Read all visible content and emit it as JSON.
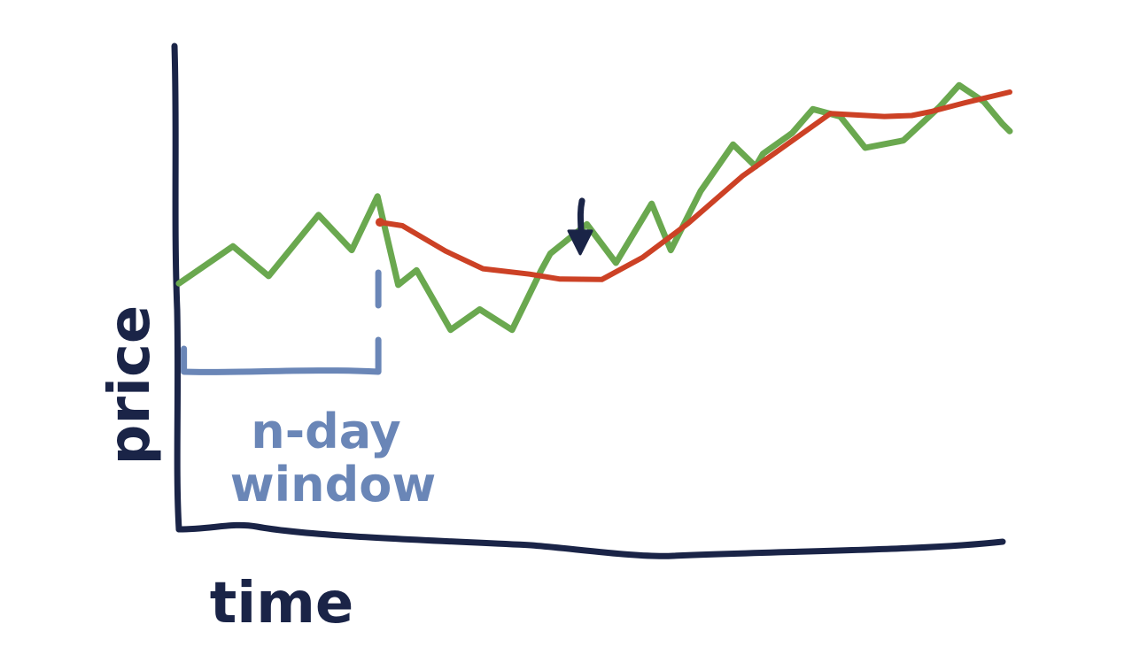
{
  "chart_data": {
    "type": "line",
    "xlabel": "time",
    "ylabel": "price",
    "grid": false,
    "legend": "none",
    "xlim": [
      0,
      100
    ],
    "ylim": [
      0,
      100
    ],
    "series": [
      {
        "color": "#6aa84f",
        "x": [
          0,
          6.5,
          10.8,
          16.8,
          20.8,
          23.9,
          26.4,
          28.6,
          32.7,
          36.2,
          40.1,
          43.6,
          44.7,
          49.1,
          52.6,
          56.9,
          59.2,
          62.8,
          66.7,
          69.4,
          70.3,
          73.8,
          76.3,
          79.6,
          82.6,
          87.2,
          91.5,
          93.9,
          96.9,
          99.1,
          100
        ],
        "y": [
          51.5,
          59.1,
          53.0,
          65.5,
          58.3,
          69.3,
          51.2,
          54.2,
          42.0,
          46.2,
          42.0,
          54.2,
          57.6,
          63.6,
          55.7,
          67.8,
          58.3,
          70.4,
          79.9,
          75.4,
          78.0,
          82.2,
          87.1,
          85.6,
          79.2,
          80.7,
          87.5,
          92.0,
          88.6,
          84.1,
          82.6
        ]
      },
      {
        "color": "#cc4125",
        "x": [
          24.2,
          26.9,
          32.1,
          36.6,
          42.2,
          45.8,
          50.9,
          55.8,
          61.3,
          67.8,
          72.2,
          78.4,
          84.9,
          88.2,
          90.5,
          94.6,
          100
        ],
        "y": [
          64.0,
          63.3,
          58.1,
          54.5,
          53.4,
          52.4,
          52.3,
          56.8,
          63.8,
          73.4,
          78.7,
          86.2,
          85.6,
          85.8,
          86.6,
          88.4,
          90.6
        ]
      }
    ],
    "annotations": [
      {
        "text": "n-day",
        "kind": "label"
      },
      {
        "text": "window",
        "kind": "label"
      }
    ],
    "window_bracket": {
      "x_start": 0.6,
      "x_end": 24.0
    },
    "marker_arrow": {
      "x": 48.3,
      "y": 56.8
    },
    "axis_color": "#1a2447",
    "annotation_color": "#6a86b7"
  }
}
